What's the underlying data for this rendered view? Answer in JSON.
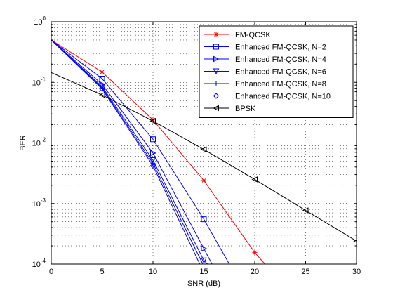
{
  "chart_data": {
    "type": "line",
    "title": "",
    "xlabel": "SNR (dB)",
    "ylabel": "BER",
    "xlim": [
      0,
      30
    ],
    "ylim": [
      0.0001,
      1
    ],
    "yscale": "log",
    "grid": true,
    "legend_position": "top-right",
    "x_ticks": [
      {
        "value": 0,
        "label": "0"
      },
      {
        "value": 5,
        "label": "5"
      },
      {
        "value": 10,
        "label": "10"
      },
      {
        "value": 15,
        "label": "15"
      },
      {
        "value": 20,
        "label": "20"
      },
      {
        "value": 25,
        "label": "25"
      },
      {
        "value": 30,
        "label": "30"
      }
    ],
    "y_ticks": [
      {
        "value": 0.0001,
        "base": "10",
        "exp": "-4"
      },
      {
        "value": 0.001,
        "base": "10",
        "exp": "-3"
      },
      {
        "value": 0.01,
        "base": "10",
        "exp": "-2"
      },
      {
        "value": 0.1,
        "base": "10",
        "exp": "-1"
      },
      {
        "value": 1,
        "base": "10",
        "exp": "0"
      }
    ],
    "series": [
      {
        "name": "FM-QCSK",
        "color": "#ff0000",
        "marker": "asterisk",
        "x": [
          0,
          5,
          10,
          15,
          20,
          21
        ],
        "y": [
          0.5,
          0.148,
          0.024,
          0.0024,
          0.000155,
          0.0001
        ],
        "marker_x": [
          5,
          10,
          15,
          20
        ]
      },
      {
        "name": "Enhanced FM-QCSK, N=2",
        "color": "#0000ff",
        "marker": "square",
        "x": [
          0,
          5,
          10,
          15,
          17.5
        ],
        "y": [
          0.5,
          0.115,
          0.0115,
          0.00055,
          0.0001
        ],
        "marker_x": [
          5,
          10,
          15
        ]
      },
      {
        "name": "Enhanced FM-QCSK, N=4",
        "color": "#0000ff",
        "marker": "triangle-right",
        "x": [
          0,
          5,
          10,
          15,
          15.8
        ],
        "y": [
          0.5,
          0.093,
          0.0068,
          0.00018,
          0.0001
        ],
        "marker_x": [
          5,
          10,
          15
        ]
      },
      {
        "name": "Enhanced FM-QCSK, N=6",
        "color": "#0000ff",
        "marker": "triangle-down",
        "x": [
          0,
          5,
          10,
          15,
          15.35
        ],
        "y": [
          0.5,
          0.085,
          0.0052,
          0.000115,
          0.0001
        ],
        "marker_x": [
          5,
          10,
          15
        ]
      },
      {
        "name": "Enhanced FM-QCSK, N=8",
        "color": "#0000ff",
        "marker": "plus",
        "x": [
          0,
          5,
          10,
          14.9
        ],
        "y": [
          0.5,
          0.081,
          0.0046,
          0.0001
        ],
        "marker_x": [
          5,
          10
        ]
      },
      {
        "name": "Enhanced FM-QCSK, N=10",
        "color": "#0000ff",
        "marker": "diamond",
        "x": [
          0,
          5,
          10,
          14.6
        ],
        "y": [
          0.5,
          0.078,
          0.0042,
          0.0001
        ],
        "marker_x": [
          5,
          10
        ]
      },
      {
        "name": "BPSK",
        "color": "#000000",
        "marker": "triangle-left",
        "x": [
          0,
          5,
          10,
          15,
          20,
          25,
          30
        ],
        "y": [
          0.145,
          0.062,
          0.023,
          0.0078,
          0.0025,
          0.00077,
          0.00024
        ],
        "marker_x": [
          5,
          10,
          15,
          20,
          25,
          30
        ]
      }
    ]
  }
}
